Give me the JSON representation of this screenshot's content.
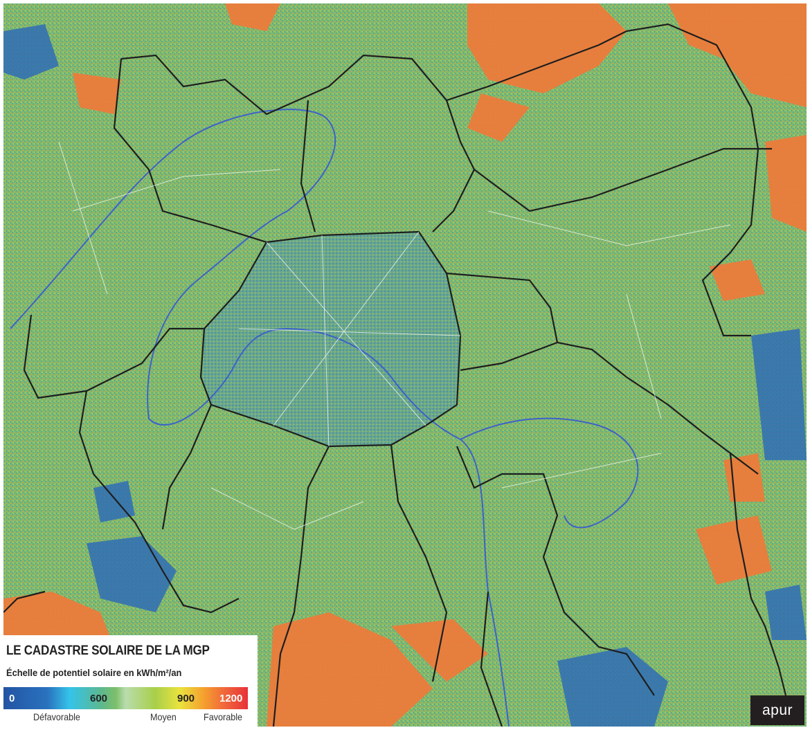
{
  "legend": {
    "title": "LE CADASTRE SOLAIRE DE LA MGP",
    "subtitle": "Échelle de potentiel solaire en kWh/m²/an",
    "ticks": [
      "0",
      "600",
      "900",
      "1200"
    ],
    "labels": [
      "Défavorable",
      "Moyen",
      "Favorable"
    ],
    "scale_colors": [
      "#2354a3",
      "#34c3ea",
      "#7cbf6a",
      "#e9e33e",
      "#f5a02e",
      "#e8323a"
    ]
  },
  "logo": {
    "text": "apur"
  },
  "map": {
    "base_color": "#7db86a",
    "favorable_color": "#ef7a3a",
    "unfavorable_color": "#2f6db5",
    "boundary_color": "#1e1e1e",
    "river_color": "#3d62c8"
  }
}
